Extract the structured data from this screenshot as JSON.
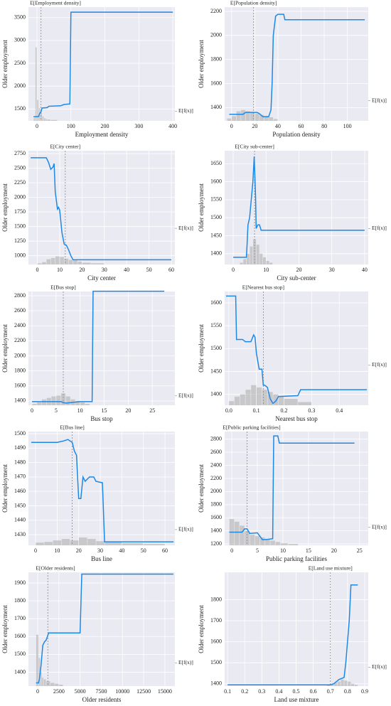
{
  "chart_data": [
    {
      "type": "line",
      "title": "E[Employment density]",
      "xlabel": "Employment density",
      "ylabel": "Older employment",
      "expected_label": "E[f(x)]",
      "color": "#1e88e5",
      "grid": true,
      "x": [
        -10,
        5,
        8,
        12,
        15,
        30,
        35,
        70,
        80,
        97,
        100,
        400
      ],
      "values": [
        1330,
        1335,
        1400,
        1440,
        1520,
        1530,
        1560,
        1570,
        1600,
        1610,
        3620,
        3620
      ],
      "xlim": [
        -25,
        406
      ],
      "ylim": [
        1240,
        3730
      ],
      "xticks": [
        0,
        100,
        200,
        300,
        400
      ],
      "yticks": [
        1500,
        2000,
        2500,
        3000,
        3500
      ],
      "x_mean": 12,
      "y_mean": 1450,
      "hist_bins": [
        -10,
        -5,
        0,
        5,
        10,
        15,
        20,
        25,
        30,
        40,
        60
      ],
      "hist_values": [
        1300,
        2850,
        1700,
        1520,
        1420,
        1340,
        1300,
        1280,
        1270,
        1260
      ]
    },
    {
      "type": "line",
      "title": "E[Population density]",
      "xlabel": "Population density",
      "ylabel": "Older employment",
      "expected_label": "E[f(x)]",
      "color": "#1e88e5",
      "grid": true,
      "x": [
        -2,
        10,
        12,
        22,
        24,
        27,
        32,
        34,
        35,
        36,
        38,
        40,
        45,
        46,
        115
      ],
      "values": [
        1345,
        1345,
        1360,
        1360,
        1350,
        1325,
        1325,
        1380,
        1600,
        2000,
        2160,
        2175,
        2175,
        2130,
        2130
      ],
      "xlim": [
        -6,
        118
      ],
      "ylim": [
        1290,
        2235
      ],
      "xticks": [
        0,
        20,
        40,
        60,
        80,
        100
      ],
      "yticks": [
        1400,
        1600,
        1800,
        2000,
        2200
      ],
      "x_mean": 19,
      "y_mean": 1458,
      "hist_bins": [
        -4,
        0,
        4,
        8,
        12,
        16,
        20,
        24,
        28,
        32,
        36,
        40
      ],
      "hist_values": [
        1310,
        1330,
        1370,
        1380,
        1370,
        1360,
        1350,
        1340,
        1330,
        1320,
        1305
      ]
    },
    {
      "type": "line",
      "title": "E[City center]",
      "xlabel": "City center",
      "ylabel": "Older employment",
      "expected_label": "E[f(x)]",
      "color": "#1e88e5",
      "grid": true,
      "x": [
        -3,
        4,
        5,
        6,
        7,
        7.5,
        8,
        9,
        9.5,
        10,
        11,
        12,
        13,
        14,
        15,
        16,
        60
      ],
      "values": [
        2680,
        2680,
        2600,
        2480,
        2520,
        2580,
        2100,
        1800,
        1830,
        1780,
        1400,
        1200,
        1180,
        1100,
        1000,
        930,
        930
      ],
      "xlim": [
        -4,
        61.6
      ],
      "ylim": [
        850,
        2800
      ],
      "xticks": [
        0,
        10,
        20,
        30,
        40,
        50,
        60
      ],
      "yticks": [
        1000,
        1250,
        1500,
        1750,
        2000,
        2250,
        2500,
        2750
      ],
      "x_mean": 12.5,
      "y_mean": 1470,
      "hist_bins": [
        0,
        2,
        4,
        6,
        8,
        10,
        12,
        14,
        16,
        18,
        20,
        24,
        30
      ],
      "hist_values": [
        870,
        890,
        940,
        960,
        990,
        980,
        950,
        930,
        920,
        900,
        880,
        870
      ]
    },
    {
      "type": "line",
      "title": "E[City sub-center]",
      "xlabel": "City sub-center",
      "ylabel": "Older employment",
      "expected_label": "E[f(x)]",
      "color": "#1e88e5",
      "grid": true,
      "x": [
        0,
        4,
        4.2,
        4.5,
        5,
        5.5,
        6,
        6.4,
        6.8,
        7,
        7.5,
        8,
        8.5,
        40
      ],
      "values": [
        1390,
        1390,
        1420,
        1480,
        1500,
        1550,
        1600,
        1670,
        1560,
        1470,
        1480,
        1480,
        1465,
        1465
      ],
      "xlim": [
        -2.6,
        41.1
      ],
      "ylim": [
        1370,
        1686
      ],
      "xticks": [
        0,
        10,
        20,
        30,
        40
      ],
      "yticks": [
        1400,
        1450,
        1500,
        1550,
        1600,
        1650
      ],
      "x_mean": 6.5,
      "y_mean": 1470,
      "hist_bins": [
        2,
        3,
        4,
        5,
        6,
        7,
        8,
        9,
        10,
        11,
        12
      ],
      "hist_values": [
        1375,
        1385,
        1400,
        1420,
        1440,
        1425,
        1400,
        1390,
        1380,
        1375
      ]
    },
    {
      "type": "line",
      "title": "E[Bus stop]",
      "xlabel": "Bus stop",
      "ylabel": "Older employment",
      "expected_label": "E[f(x)]",
      "color": "#1e88e5",
      "grid": true,
      "x": [
        0,
        6,
        7,
        10,
        12.5,
        12.7,
        27.5
      ],
      "values": [
        1390,
        1390,
        1370,
        1390,
        1390,
        2860,
        2860
      ],
      "xlim": [
        -0.74,
        29.7
      ],
      "ylim": [
        1342,
        2857
      ],
      "xticks": [
        0,
        5,
        10,
        15,
        20,
        25
      ],
      "yticks": [
        1400,
        1600,
        1800,
        2000,
        2200,
        2400,
        2600,
        2800
      ],
      "x_mean": 6.5,
      "y_mean": 1467,
      "hist_bins": [
        0,
        1,
        2,
        3,
        4,
        5,
        6,
        7,
        8,
        9,
        10,
        11,
        12
      ],
      "hist_values": [
        1360,
        1380,
        1420,
        1440,
        1460,
        1470,
        1500,
        1460,
        1420,
        1400,
        1380,
        1360
      ]
    },
    {
      "type": "line",
      "title": "E[Nearest bus stop]",
      "xlabel": "Nearest bus stop",
      "ylabel": "Older employment",
      "expected_label": "E[f(x)]",
      "color": "#1e88e5",
      "grid": true,
      "x": [
        -0.01,
        0.025,
        0.028,
        0.05,
        0.06,
        0.08,
        0.09,
        0.095,
        0.1,
        0.11,
        0.12,
        0.125,
        0.13,
        0.14,
        0.15,
        0.16,
        0.17,
        0.18,
        0.25,
        0.26,
        0.5
      ],
      "values": [
        1615,
        1615,
        1520,
        1520,
        1515,
        1515,
        1530,
        1525,
        1490,
        1455,
        1455,
        1420,
        1420,
        1415,
        1390,
        1380,
        1385,
        1395,
        1397,
        1410,
        1410
      ],
      "xlim": [
        -0.015,
        0.505
      ],
      "ylim": [
        1376,
        1625
      ],
      "xticks": [
        {
          "value": 0,
          "label": "0.0"
        },
        0.1,
        0.2,
        0.3,
        0.4
      ],
      "yticks": [
        1400,
        1450,
        1500,
        1550,
        1600
      ],
      "x_mean": 0.125,
      "y_mean": 1464,
      "hist_bins": [
        0,
        0.02,
        0.04,
        0.06,
        0.08,
        0.1,
        0.12,
        0.14,
        0.16,
        0.18,
        0.2,
        0.25,
        0.3
      ],
      "hist_values": [
        1385,
        1395,
        1400,
        1410,
        1420,
        1415,
        1410,
        1405,
        1400,
        1395,
        1390,
        1383
      ]
    },
    {
      "type": "line",
      "title": "E[Bus line]",
      "xlabel": "Bus line",
      "ylabel": "Older employment",
      "expected_label": "E[f(x)]",
      "color": "#1e88e5",
      "grid": true,
      "x": [
        -2,
        10,
        13,
        15,
        17,
        18,
        19,
        20,
        21,
        22,
        23,
        25,
        27,
        28,
        31,
        32,
        64
      ],
      "values": [
        1494,
        1494,
        1495,
        1496,
        1494,
        1488,
        1485,
        1455,
        1455,
        1470,
        1467,
        1470,
        1470,
        1467,
        1466,
        1425,
        1425
      ],
      "xlim": [
        -3.3,
        64.6
      ],
      "ylim": [
        1422.6,
        1501.5
      ],
      "xticks": [
        0,
        10,
        20,
        30,
        40,
        50,
        60
      ],
      "yticks": [
        1430,
        1440,
        1450,
        1460,
        1470,
        1480,
        1490,
        1500
      ],
      "x_mean": 17,
      "y_mean": 1433.5,
      "hist_bins": [
        0,
        4,
        8,
        12,
        16,
        20,
        24,
        28,
        32,
        40,
        50,
        60
      ],
      "hist_values": [
        1424.5,
        1425,
        1426,
        1427,
        1426,
        1428,
        1427,
        1425.5,
        1425,
        1424,
        1423.5
      ]
    },
    {
      "type": "line",
      "title": "E[Public parking facilities]",
      "xlabel": "Public parking facilities",
      "ylabel": "Older employment",
      "expected_label": "E[f(x)]",
      "color": "#1e88e5",
      "grid": true,
      "x": [
        -0.5,
        2,
        2.5,
        3,
        3.5,
        5,
        6,
        7,
        8,
        8.2,
        9,
        9.3,
        24
      ],
      "values": [
        1380,
        1380,
        1430,
        1430,
        1360,
        1370,
        1265,
        1270,
        1280,
        2850,
        2850,
        2740,
        2740
      ],
      "xlim": [
        -1.4,
        26.7
      ],
      "ylim": [
        1179,
        2916
      ],
      "xticks": [
        0,
        5,
        10,
        15,
        20,
        25
      ],
      "yticks": [
        1200,
        1400,
        1600,
        1800,
        2000,
        2200,
        2400,
        2600,
        2800
      ],
      "x_mean": 3,
      "y_mean": 1454,
      "hist_bins": [
        -0.5,
        0.5,
        1.5,
        2.5,
        3.5,
        4.5,
        5.5,
        6.5,
        7.5,
        8.5,
        9.5,
        11,
        13
      ],
      "hist_values": [
        1580,
        1540,
        1480,
        1400,
        1340,
        1320,
        1300,
        1270,
        1250,
        1230,
        1210,
        1200
      ]
    },
    {
      "type": "line",
      "title": "E[Older residents]",
      "xlabel": "Older residents",
      "ylabel": "Older employment",
      "expected_label": "E[f(x)]",
      "color": "#1e88e5",
      "grid": true,
      "x": [
        -200,
        100,
        200,
        400,
        600,
        800,
        1000,
        1300,
        5000,
        5200,
        16000
      ],
      "values": [
        1340,
        1340,
        1360,
        1440,
        1550,
        1570,
        1580,
        1620,
        1620,
        1950,
        1950
      ],
      "xlim": [
        -1090,
        16180
      ],
      "ylim": [
        1322,
        1960
      ],
      "xticks": [
        0,
        2500,
        5000,
        7500,
        10000,
        12500,
        15000
      ],
      "yticks": [
        1400,
        1500,
        1600,
        1700,
        1800,
        1900
      ],
      "x_mean": 1200,
      "y_mean": 1452,
      "hist_bins": [
        -200,
        100,
        300,
        500,
        700,
        1000,
        1500,
        2000,
        2500,
        3000
      ],
      "hist_values": [
        1610,
        1480,
        1400,
        1370,
        1360,
        1350,
        1340,
        1335,
        1330
      ]
    },
    {
      "type": "line",
      "title": "E[Land use mixture]",
      "xlabel": "Land use mixture",
      "ylabel": "Older employment",
      "expected_label": "E[f(x)]",
      "color": "#1e88e5",
      "grid": true,
      "x": [
        0.1,
        0.7,
        0.72,
        0.75,
        0.78,
        0.79,
        0.8,
        0.81,
        0.82,
        0.86
      ],
      "values": [
        1395,
        1395,
        1400,
        1420,
        1430,
        1500,
        1600,
        1700,
        1870,
        1870
      ],
      "xlim": [
        0.083,
        0.921
      ],
      "ylim": [
        1389,
        1930
      ],
      "xticks": [
        0.1,
        0.2,
        0.3,
        0.4,
        0.5,
        0.6,
        0.7,
        0.8,
        0.9
      ],
      "yticks": [
        1400,
        1500,
        1600,
        1700,
        1800
      ],
      "x_mean": 0.7,
      "y_mean": 1479,
      "hist_bins": [
        0.68,
        0.7,
        0.72,
        0.74,
        0.76,
        0.78,
        0.8,
        0.82,
        0.84,
        0.86
      ],
      "hist_values": [
        1395,
        1400,
        1405,
        1410,
        1420,
        1415,
        1410,
        1400,
        1395
      ]
    }
  ]
}
